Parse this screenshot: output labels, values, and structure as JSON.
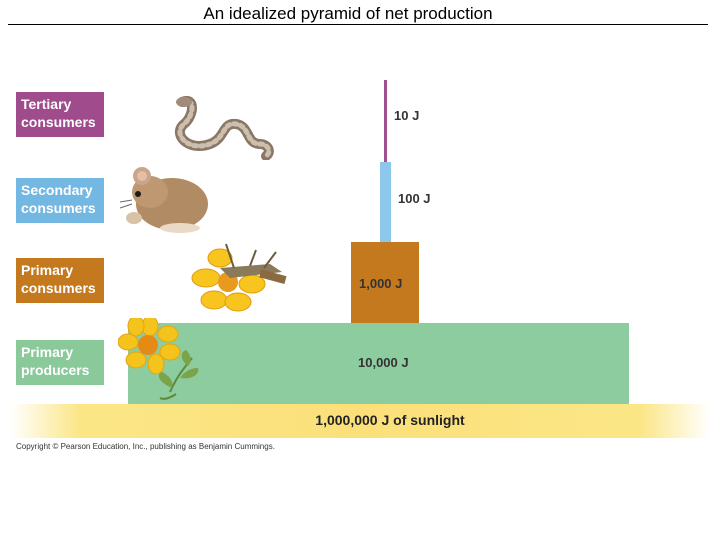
{
  "title": "An idealized pyramid of net production",
  "levels": {
    "tertiary": {
      "label": "Tertiary consumers",
      "energy": "10 J"
    },
    "secondary": {
      "label": "Secondary consumers",
      "energy": "100 J"
    },
    "primary": {
      "label": "Primary consumers",
      "energy": "1,000 J"
    },
    "producers": {
      "label": "Primary producers",
      "energy": "10,000 J"
    }
  },
  "sunlight": "1,000,000 J of sunlight",
  "copyright": "Copyright © Pearson Education, Inc., publishing as Benjamin Cummings.",
  "colors": {
    "tertiary": "#a04b8c",
    "secondary": "#73b7e3",
    "primary": "#c4791f",
    "producers": "#8ccc9e",
    "sunlight": "#fbe07a"
  },
  "icons": [
    "snake-icon",
    "mouse-icon",
    "grasshopper-icon",
    "flower-icon"
  ]
}
